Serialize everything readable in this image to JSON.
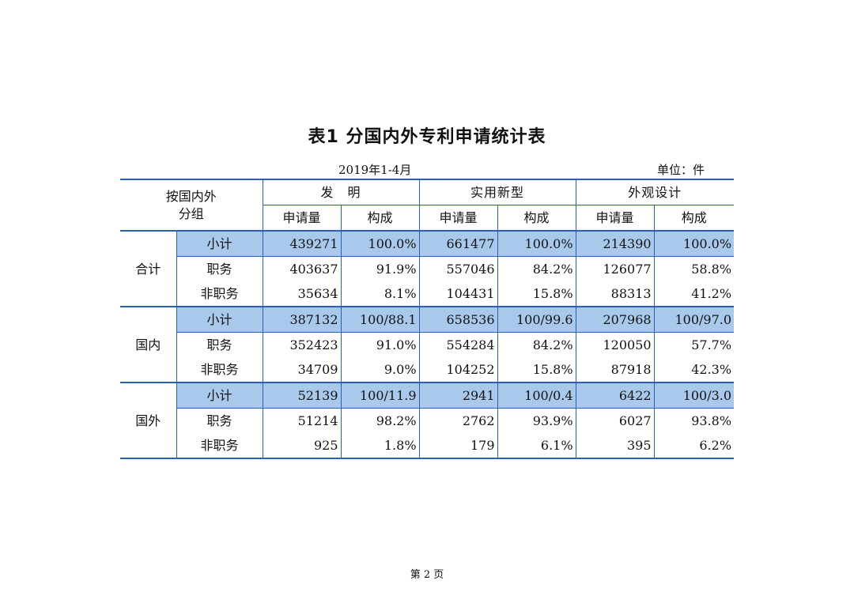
{
  "title": "表1  分国内外专利申请统计表",
  "period": "2019年1-4月",
  "unit": "单位：件",
  "header": {
    "corner_line1": "按国内外",
    "corner_line2": "分组",
    "groups": [
      "发　明",
      "实用新型",
      "外观设计"
    ],
    "sub": [
      "申请量",
      "构成"
    ]
  },
  "groups": [
    {
      "label": "合计",
      "rows": [
        {
          "label": "小计",
          "invention": "439271",
          "invention_pct": "100.0%",
          "utility": "661477",
          "utility_pct": "100.0%",
          "design": "214390",
          "design_pct": "100.0%"
        },
        {
          "label": "职务",
          "invention": "403637",
          "invention_pct": "91.9%",
          "utility": "557046",
          "utility_pct": "84.2%",
          "design": "126077",
          "design_pct": "58.8%"
        },
        {
          "label": "非职务",
          "invention": "35634",
          "invention_pct": "8.1%",
          "utility": "104431",
          "utility_pct": "15.8%",
          "design": "88313",
          "design_pct": "41.2%"
        }
      ]
    },
    {
      "label": "国内",
      "rows": [
        {
          "label": "小计",
          "invention": "387132",
          "invention_pct": "100/88.1",
          "utility": "658536",
          "utility_pct": "100/99.6",
          "design": "207968",
          "design_pct": "100/97.0"
        },
        {
          "label": "职务",
          "invention": "352423",
          "invention_pct": "91.0%",
          "utility": "554284",
          "utility_pct": "84.2%",
          "design": "120050",
          "design_pct": "57.7%"
        },
        {
          "label": "非职务",
          "invention": "34709",
          "invention_pct": "9.0%",
          "utility": "104252",
          "utility_pct": "15.8%",
          "design": "87918",
          "design_pct": "42.3%"
        }
      ]
    },
    {
      "label": "国外",
      "rows": [
        {
          "label": "小计",
          "invention": "52139",
          "invention_pct": "100/11.9",
          "utility": "2941",
          "utility_pct": "100/0.4",
          "design": "6422",
          "design_pct": "100/3.0"
        },
        {
          "label": "职务",
          "invention": "51214",
          "invention_pct": "98.2%",
          "utility": "2762",
          "utility_pct": "93.9%",
          "design": "6027",
          "design_pct": "93.8%"
        },
        {
          "label": "非职务",
          "invention": "925",
          "invention_pct": "1.8%",
          "utility": "179",
          "utility_pct": "6.1%",
          "design": "395",
          "design_pct": "6.2%"
        }
      ]
    }
  ],
  "footer": "第 2 页",
  "colors": {
    "rule": "#2a5fb8",
    "shade": "#a9c9ec"
  }
}
